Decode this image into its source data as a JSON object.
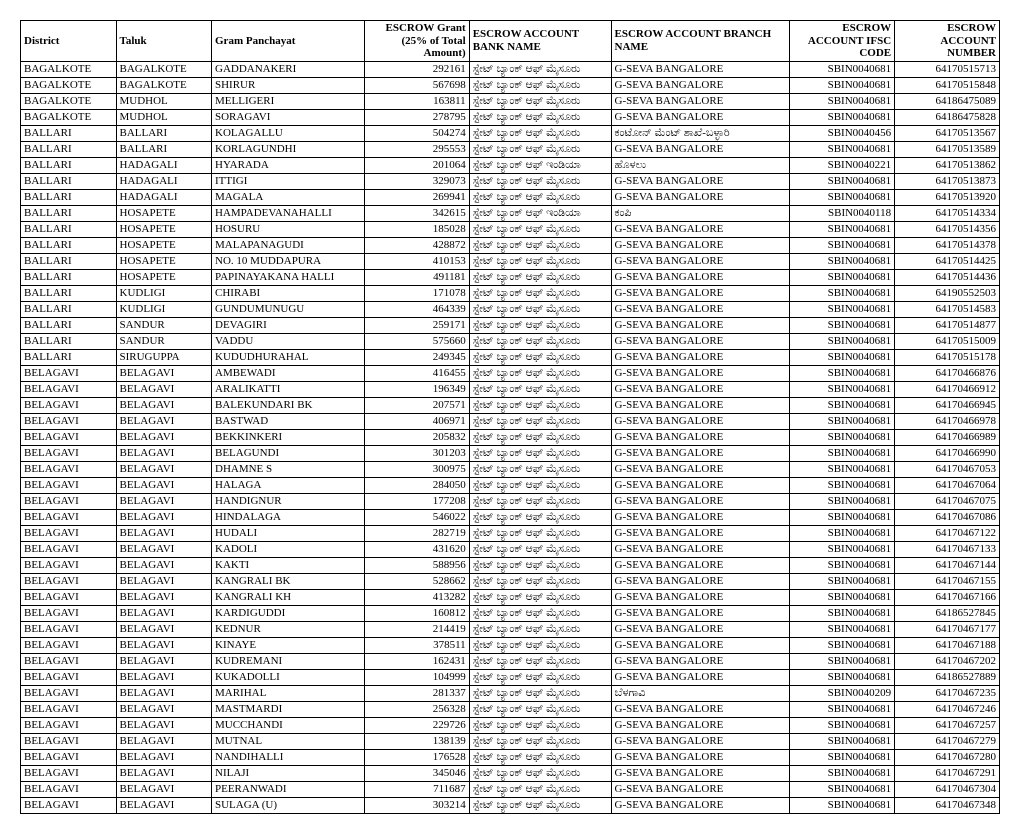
{
  "columns": [
    "District",
    "Taluk",
    "Gram Panchayat",
    "ESCROW Grant (25% of Total Amount)",
    "ESCROW ACCOUNT BANK NAME",
    "ESCROW ACCOUNT BRANCH NAME",
    "ESCROW ACCOUNT IFSC CODE",
    "ESCROW ACCOUNT NUMBER"
  ],
  "rows": [
    [
      "BAGALKOTE",
      "BAGALKOTE",
      "GADDANAKERI",
      "292161",
      "ಸ್ಟೇಟ್ ಬ್ಯಾಂಕ್ ಆಫ್ ಮೈಸೂರು",
      "G-SEVA BANGALORE",
      "SBIN0040681",
      "64170515713"
    ],
    [
      "BAGALKOTE",
      "BAGALKOTE",
      "SHIRUR",
      "567698",
      "ಸ್ಟೇಟ್ ಬ್ಯಾಂಕ್ ಆಫ್ ಮೈಸೂರು",
      "G-SEVA BANGALORE",
      "SBIN0040681",
      "64170515848"
    ],
    [
      "BAGALKOTE",
      "MUDHOL",
      "MELLIGERI",
      "163811",
      "ಸ್ಟೇಟ್ ಬ್ಯಾಂಕ್ ಆಫ್ ಮೈಸೂರು",
      "G-SEVA BANGALORE",
      "SBIN0040681",
      "64186475089"
    ],
    [
      "BAGALKOTE",
      "MUDHOL",
      "SORAGAVI",
      "278795",
      "ಸ್ಟೇಟ್ ಬ್ಯಾಂಕ್ ಆಫ್ ಮೈಸೂರು",
      "G-SEVA BANGALORE",
      "SBIN0040681",
      "64186475828"
    ],
    [
      "BALLARI",
      "BALLARI",
      "KOLAGALLU",
      "504274",
      "ಸ್ಟೇಟ್ ಬ್ಯಾಂಕ್ ಆಫ್ ಮೈಸೂರು",
      "ಕಂಟೋನ್ ಮೆಂಟ್ ಶಾಖೆ-ಬಳ್ಳಾರಿ",
      "SBIN0040456",
      "64170513567"
    ],
    [
      "BALLARI",
      "BALLARI",
      "KORLAGUNDHI",
      "295553",
      "ಸ್ಟೇಟ್ ಬ್ಯಾಂಕ್ ಆಫ್ ಮೈಸೂರು",
      "G-SEVA BANGALORE",
      "SBIN0040681",
      "64170513589"
    ],
    [
      "BALLARI",
      "HADAGALI",
      "HYARADA",
      "201064",
      "ಸ್ಟೇಟ್ ಬ್ಯಾಂಕ್ ಆಫ್ ಇಂಡಿಯಾ",
      "ಹೊಳಲು",
      "SBIN0040221",
      "64170513862"
    ],
    [
      "BALLARI",
      "HADAGALI",
      "ITTIGI",
      "329073",
      "ಸ್ಟೇಟ್ ಬ್ಯಾಂಕ್ ಆಫ್ ಮೈಸೂರು",
      "G-SEVA BANGALORE",
      "SBIN0040681",
      "64170513873"
    ],
    [
      "BALLARI",
      "HADAGALI",
      "MAGALA",
      "269941",
      "ಸ್ಟೇಟ್ ಬ್ಯಾಂಕ್ ಆಫ್ ಮೈಸೂರು",
      "G-SEVA BANGALORE",
      "SBIN0040681",
      "64170513920"
    ],
    [
      "BALLARI",
      "HOSAPETE",
      "HAMPADEVANAHALLI",
      "342615",
      "ಸ್ಟೇಟ್ ಬ್ಯಾಂಕ್ ಆಫ್ ಇಂಡಿಯಾ",
      "ಕಂಪಿ",
      "SBIN0040118",
      "64170514334"
    ],
    [
      "BALLARI",
      "HOSAPETE",
      "HOSURU",
      "185028",
      "ಸ್ಟೇಟ್ ಬ್ಯಾಂಕ್ ಆಫ್ ಮೈಸೂರು",
      "G-SEVA BANGALORE",
      "SBIN0040681",
      "64170514356"
    ],
    [
      "BALLARI",
      "HOSAPETE",
      "MALAPANAGUDI",
      "428872",
      "ಸ್ಟೇಟ್ ಬ್ಯಾಂಕ್ ಆಫ್ ಮೈಸೂರು",
      "G-SEVA BANGALORE",
      "SBIN0040681",
      "64170514378"
    ],
    [
      "BALLARI",
      "HOSAPETE",
      "NO. 10 MUDDAPURA",
      "410153",
      "ಸ್ಟೇಟ್ ಬ್ಯಾಂಕ್ ಆಫ್ ಮೈಸೂರು",
      "G-SEVA BANGALORE",
      "SBIN0040681",
      "64170514425"
    ],
    [
      "BALLARI",
      "HOSAPETE",
      "PAPINAYAKANA HALLI",
      "491181",
      "ಸ್ಟೇಟ್ ಬ್ಯಾಂಕ್ ಆಫ್ ಮೈಸೂರು",
      "G-SEVA BANGALORE",
      "SBIN0040681",
      "64170514436"
    ],
    [
      "BALLARI",
      "KUDLIGI",
      "CHIRABI",
      "171078",
      "ಸ್ಟೇಟ್ ಬ್ಯಾಂಕ್ ಆಫ್ ಮೈಸೂರು",
      "G-SEVA BANGALORE",
      "SBIN0040681",
      "64190552503"
    ],
    [
      "BALLARI",
      "KUDLIGI",
      "GUNDUMUNUGU",
      "464339",
      "ಸ್ಟೇಟ್ ಬ್ಯಾಂಕ್ ಆಫ್ ಮೈಸೂರು",
      "G-SEVA BANGALORE",
      "SBIN0040681",
      "64170514583"
    ],
    [
      "BALLARI",
      "SANDUR",
      "DEVAGIRI",
      "259171",
      "ಸ್ಟೇಟ್ ಬ್ಯಾಂಕ್ ಆಫ್ ಮೈಸೂರು",
      "G-SEVA BANGALORE",
      "SBIN0040681",
      "64170514877"
    ],
    [
      "BALLARI",
      "SANDUR",
      "VADDU",
      "575660",
      "ಸ್ಟೇಟ್ ಬ್ಯಾಂಕ್ ಆಫ್ ಮೈಸೂರು",
      "G-SEVA BANGALORE",
      "SBIN0040681",
      "64170515009"
    ],
    [
      "BALLARI",
      "SIRUGUPPA",
      "KUDUDHURAHAL",
      "249345",
      "ಸ್ಟೇಟ್ ಬ್ಯಾಂಕ್ ಆಫ್ ಮೈಸೂರು",
      "G-SEVA BANGALORE",
      "SBIN0040681",
      "64170515178"
    ],
    [
      "BELAGAVI",
      "BELAGAVI",
      "AMBEWADI",
      "416455",
      "ಸ್ಟೇಟ್ ಬ್ಯಾಂಕ್ ಆಫ್ ಮೈಸೂರು",
      "G-SEVA BANGALORE",
      "SBIN0040681",
      "64170466876"
    ],
    [
      "BELAGAVI",
      "BELAGAVI",
      "ARALIKATTI",
      "196349",
      "ಸ್ಟೇಟ್ ಬ್ಯಾಂಕ್ ಆಫ್ ಮೈಸೂರು",
      "G-SEVA BANGALORE",
      "SBIN0040681",
      "64170466912"
    ],
    [
      "BELAGAVI",
      "BELAGAVI",
      "BALEKUNDARI BK",
      "207571",
      "ಸ್ಟೇಟ್ ಬ್ಯಾಂಕ್ ಆಫ್ ಮೈಸೂರು",
      "G-SEVA BANGALORE",
      "SBIN0040681",
      "64170466945"
    ],
    [
      "BELAGAVI",
      "BELAGAVI",
      "BASTWAD",
      "406971",
      "ಸ್ಟೇಟ್ ಬ್ಯಾಂಕ್ ಆಫ್ ಮೈಸೂರು",
      "G-SEVA BANGALORE",
      "SBIN0040681",
      "64170466978"
    ],
    [
      "BELAGAVI",
      "BELAGAVI",
      "BEKKINKERI",
      "205832",
      "ಸ್ಟೇಟ್ ಬ್ಯಾಂಕ್ ಆಫ್ ಮೈಸೂರು",
      "G-SEVA BANGALORE",
      "SBIN0040681",
      "64170466989"
    ],
    [
      "BELAGAVI",
      "BELAGAVI",
      "BELAGUNDI",
      "301203",
      "ಸ್ಟೇಟ್ ಬ್ಯಾಂಕ್ ಆಫ್ ಮೈಸೂರು",
      "G-SEVA BANGALORE",
      "SBIN0040681",
      "64170466990"
    ],
    [
      "BELAGAVI",
      "BELAGAVI",
      "DHAMNE S",
      "300975",
      "ಸ್ಟೇಟ್ ಬ್ಯಾಂಕ್ ಆಫ್ ಮೈಸೂರು",
      "G-SEVA BANGALORE",
      "SBIN0040681",
      "64170467053"
    ],
    [
      "BELAGAVI",
      "BELAGAVI",
      "HALAGA",
      "284050",
      "ಸ್ಟೇಟ್ ಬ್ಯಾಂಕ್ ಆಫ್ ಮೈಸೂರು",
      "G-SEVA BANGALORE",
      "SBIN0040681",
      "64170467064"
    ],
    [
      "BELAGAVI",
      "BELAGAVI",
      "HANDIGNUR",
      "177208",
      "ಸ್ಟೇಟ್ ಬ್ಯಾಂಕ್ ಆಫ್ ಮೈಸೂರು",
      "G-SEVA BANGALORE",
      "SBIN0040681",
      "64170467075"
    ],
    [
      "BELAGAVI",
      "BELAGAVI",
      "HINDALAGA",
      "546022",
      "ಸ್ಟೇಟ್ ಬ್ಯಾಂಕ್ ಆಫ್ ಮೈಸೂರು",
      "G-SEVA BANGALORE",
      "SBIN0040681",
      "64170467086"
    ],
    [
      "BELAGAVI",
      "BELAGAVI",
      "HUDALI",
      "282719",
      "ಸ್ಟೇಟ್ ಬ್ಯಾಂಕ್ ಆಫ್ ಮೈಸೂರು",
      "G-SEVA BANGALORE",
      "SBIN0040681",
      "64170467122"
    ],
    [
      "BELAGAVI",
      "BELAGAVI",
      "KADOLI",
      "431620",
      "ಸ್ಟೇಟ್ ಬ್ಯಾಂಕ್ ಆಫ್ ಮೈಸೂರು",
      "G-SEVA BANGALORE",
      "SBIN0040681",
      "64170467133"
    ],
    [
      "BELAGAVI",
      "BELAGAVI",
      "KAKTI",
      "588956",
      "ಸ್ಟೇಟ್ ಬ್ಯಾಂಕ್ ಆಫ್ ಮೈಸೂರು",
      "G-SEVA BANGALORE",
      "SBIN0040681",
      "64170467144"
    ],
    [
      "BELAGAVI",
      "BELAGAVI",
      "KANGRALI BK",
      "528662",
      "ಸ್ಟೇಟ್ ಬ್ಯಾಂಕ್ ಆಫ್ ಮೈಸೂರು",
      "G-SEVA BANGALORE",
      "SBIN0040681",
      "64170467155"
    ],
    [
      "BELAGAVI",
      "BELAGAVI",
      "KANGRALI KH",
      "413282",
      "ಸ್ಟೇಟ್ ಬ್ಯಾಂಕ್ ಆಫ್ ಮೈಸೂರು",
      "G-SEVA BANGALORE",
      "SBIN0040681",
      "64170467166"
    ],
    [
      "BELAGAVI",
      "BELAGAVI",
      "KARDIGUDDI",
      "160812",
      "ಸ್ಟೇಟ್ ಬ್ಯಾಂಕ್ ಆಫ್ ಮೈಸೂರು",
      "G-SEVA BANGALORE",
      "SBIN0040681",
      "64186527845"
    ],
    [
      "BELAGAVI",
      "BELAGAVI",
      "KEDNUR",
      "214419",
      "ಸ್ಟೇಟ್ ಬ್ಯಾಂಕ್ ಆಫ್ ಮೈಸೂರು",
      "G-SEVA BANGALORE",
      "SBIN0040681",
      "64170467177"
    ],
    [
      "BELAGAVI",
      "BELAGAVI",
      "KINAYE",
      "378511",
      "ಸ್ಟೇಟ್ ಬ್ಯಾಂಕ್ ಆಫ್ ಮೈಸೂರು",
      "G-SEVA BANGALORE",
      "SBIN0040681",
      "64170467188"
    ],
    [
      "BELAGAVI",
      "BELAGAVI",
      "KUDREMANI",
      "162431",
      "ಸ್ಟೇಟ್ ಬ್ಯಾಂಕ್ ಆಫ್ ಮೈಸೂರು",
      "G-SEVA BANGALORE",
      "SBIN0040681",
      "64170467202"
    ],
    [
      "BELAGAVI",
      "BELAGAVI",
      "KUKADOLLI",
      "104999",
      "ಸ್ಟೇಟ್ ಬ್ಯಾಂಕ್ ಆಫ್ ಮೈಸೂರು",
      "G-SEVA BANGALORE",
      "SBIN0040681",
      "64186527889"
    ],
    [
      "BELAGAVI",
      "BELAGAVI",
      "MARIHAL",
      "281337",
      "ಸ್ಟೇಟ್ ಬ್ಯಾಂಕ್ ಆಫ್ ಮೈಸೂರು",
      "ಬೆಳಗಾವಿ",
      "SBIN0040209",
      "64170467235"
    ],
    [
      "BELAGAVI",
      "BELAGAVI",
      "MASTMARDI",
      "256328",
      "ಸ್ಟೇಟ್ ಬ್ಯಾಂಕ್ ಆಫ್ ಮೈಸೂರು",
      "G-SEVA BANGALORE",
      "SBIN0040681",
      "64170467246"
    ],
    [
      "BELAGAVI",
      "BELAGAVI",
      "MUCCHANDI",
      "229726",
      "ಸ್ಟೇಟ್ ಬ್ಯಾಂಕ್ ಆಫ್ ಮೈಸೂರು",
      "G-SEVA BANGALORE",
      "SBIN0040681",
      "64170467257"
    ],
    [
      "BELAGAVI",
      "BELAGAVI",
      "MUTNAL",
      "138139",
      "ಸ್ಟೇಟ್ ಬ್ಯಾಂಕ್ ಆಫ್ ಮೈಸೂರು",
      "G-SEVA BANGALORE",
      "SBIN0040681",
      "64170467279"
    ],
    [
      "BELAGAVI",
      "BELAGAVI",
      "NANDIHALLI",
      "176528",
      "ಸ್ಟೇಟ್ ಬ್ಯಾಂಕ್ ಆಫ್ ಮೈಸೂರು",
      "G-SEVA BANGALORE",
      "SBIN0040681",
      "64170467280"
    ],
    [
      "BELAGAVI",
      "BELAGAVI",
      "NILAJI",
      "345046",
      "ಸ್ಟೇಟ್ ಬ್ಯಾಂಕ್ ಆಫ್ ಮೈಸೂರು",
      "G-SEVA BANGALORE",
      "SBIN0040681",
      "64170467291"
    ],
    [
      "BELAGAVI",
      "BELAGAVI",
      "PEERANWADI",
      "711687",
      "ಸ್ಟೇಟ್ ಬ್ಯಾಂಕ್ ಆಫ್ ಮೈಸೂರು",
      "G-SEVA BANGALORE",
      "SBIN0040681",
      "64170467304"
    ],
    [
      "BELAGAVI",
      "BELAGAVI",
      "SULAGA (U)",
      "303214",
      "ಸ್ಟೇಟ್ ಬ್ಯಾಂಕ್ ಆಫ್ ಮೈಸೂರು",
      "G-SEVA BANGALORE",
      "SBIN0040681",
      "64170467348"
    ]
  ],
  "col_classes": [
    "col-district",
    "col-taluk",
    "col-gram",
    "col-grant",
    "col-bank",
    "col-branch",
    "col-ifsc",
    "col-acct"
  ]
}
